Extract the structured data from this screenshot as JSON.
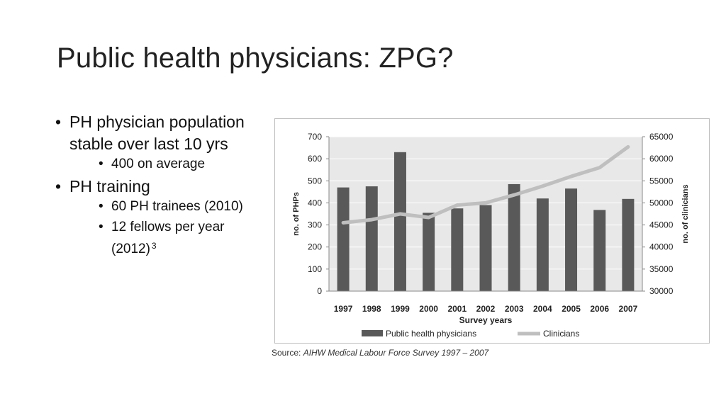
{
  "slide": {
    "title": "Public health physicians: ZPG?",
    "bullets": [
      {
        "text": "PH physician population stable over last 10 yrs",
        "sub": [
          {
            "text": "400 on average"
          }
        ]
      },
      {
        "text": "PH training",
        "sub": [
          {
            "text": "60 PH trainees (2010)"
          },
          {
            "text": "12 fellows per year (2012)",
            "sup": "3"
          }
        ]
      }
    ],
    "source_prefix": "Source:",
    "source_text": "AIHW Medical Labour Force Survey 1997 – 2007"
  },
  "chart_data": {
    "type": "bar",
    "categories": [
      "1997",
      "1998",
      "1999",
      "2000",
      "2001",
      "2002",
      "2003",
      "2004",
      "2005",
      "2006",
      "2007"
    ],
    "series": [
      {
        "name": "Public health physicians",
        "type": "bar",
        "axis": "left",
        "color": "#595959",
        "values": [
          470,
          475,
          630,
          355,
          375,
          390,
          485,
          420,
          465,
          368,
          418
        ]
      },
      {
        "name": "Clinicians",
        "type": "line",
        "axis": "right",
        "color": "#bfbfbf",
        "values": [
          45500,
          46200,
          47500,
          46700,
          49500,
          50000,
          51800,
          53800,
          56000,
          58000,
          62700
        ]
      }
    ],
    "xlabel": "Survey years",
    "ylabel": "no. of PHPs",
    "y2label": "no. of clinicians",
    "ylim": [
      0,
      700
    ],
    "y2lim": [
      30000,
      65000
    ],
    "yticks": [
      "0",
      "100",
      "200",
      "300",
      "400",
      "500",
      "600",
      "700"
    ],
    "y2ticks": [
      "30000",
      "35000",
      "40000",
      "45000",
      "50000",
      "55000",
      "60000",
      "65000"
    ],
    "grid": true,
    "plot_background": "#e8e8e8",
    "legend_position": "bottom"
  }
}
